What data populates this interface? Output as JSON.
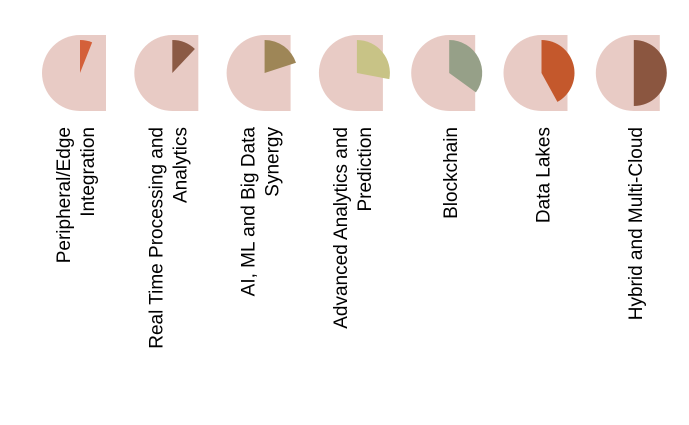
{
  "chart_data": {
    "type": "pie",
    "title": "",
    "categories": [
      {
        "label_lines": [
          "Peripheral/Edge",
          "Integration"
        ],
        "value": 6,
        "color": "#d4603a"
      },
      {
        "label_lines": [
          "Real Time Processing and",
          "Analytics"
        ],
        "value": 12,
        "color": "#8b5a45"
      },
      {
        "label_lines": [
          "AI, ML and Big Data",
          "Synergy"
        ],
        "value": 20,
        "color": "#9e8657"
      },
      {
        "label_lines": [
          "Advanced Analytics and",
          "Prediction"
        ],
        "value": 28,
        "color": "#c8c386"
      },
      {
        "label_lines": [
          "Blockchain"
        ],
        "value": 35,
        "color": "#96a088"
      },
      {
        "label_lines": [
          "Data Lakes"
        ],
        "value": 42,
        "color": "#c4582c"
      },
      {
        "label_lines": [
          "Hybrid and Multi-Cloud"
        ],
        "value": 50,
        "color": "#8b5640"
      }
    ],
    "max_value": 100,
    "background_color": "#e8cbc5",
    "edge_color": "#e3c4bc"
  }
}
